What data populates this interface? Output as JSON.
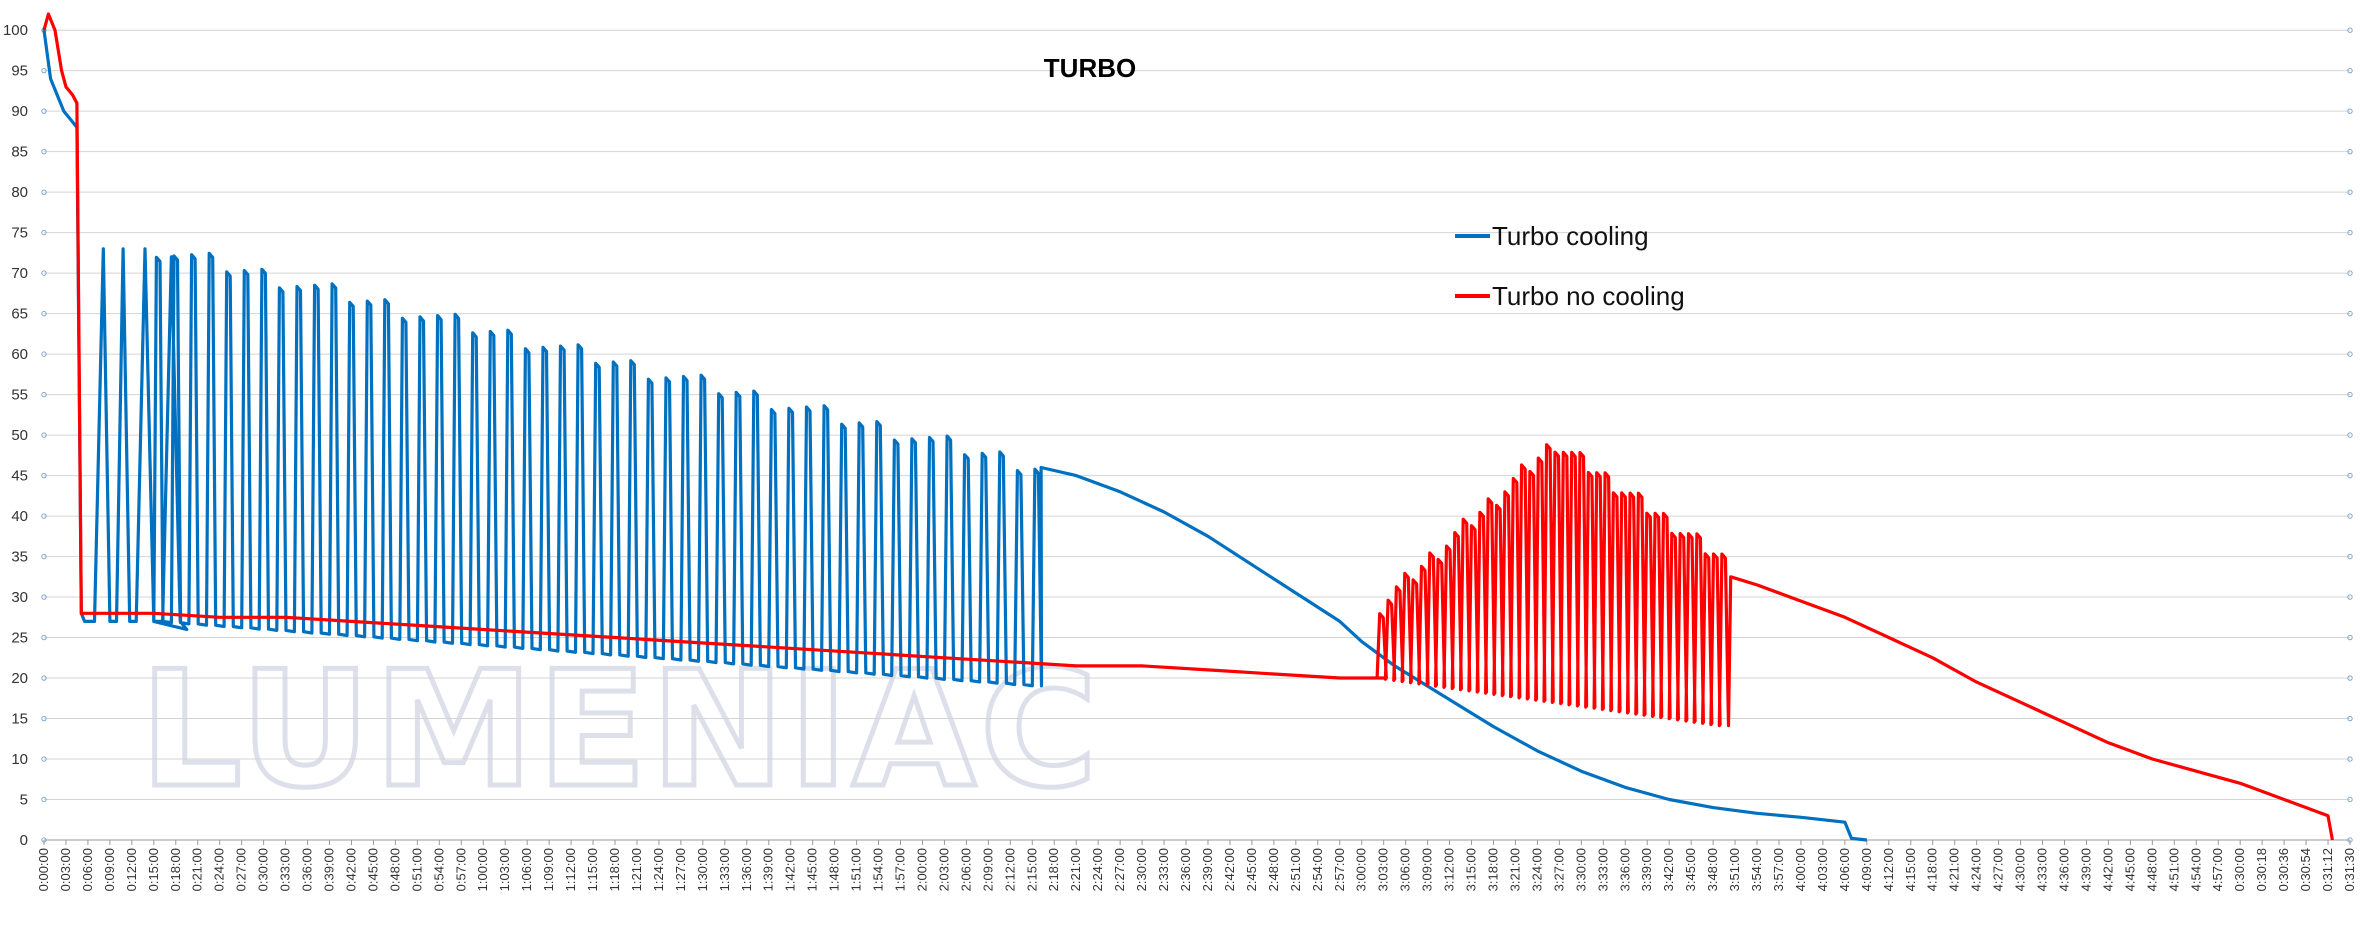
{
  "watermark": "LUMENIAC",
  "chart_data": {
    "type": "line",
    "title": "TURBO",
    "xlabel": "",
    "ylabel": "",
    "ylim": [
      0,
      102
    ],
    "yticks": [
      0,
      5,
      10,
      15,
      20,
      25,
      30,
      35,
      40,
      45,
      50,
      55,
      60,
      65,
      70,
      75,
      80,
      85,
      90,
      95,
      100
    ],
    "grid": true,
    "legend": "upper-center-right",
    "x_tick_labels": [
      "0:00:00",
      "0:03:00",
      "0:06:00",
      "0:09:00",
      "0:12:00",
      "0:15:00",
      "0:18:00",
      "0:21:00",
      "0:24:00",
      "0:27:00",
      "0:30:00",
      "0:33:00",
      "0:36:00",
      "0:39:00",
      "0:42:00",
      "0:45:00",
      "0:48:00",
      "0:51:00",
      "0:54:00",
      "0:57:00",
      "1:00:00",
      "1:03:00",
      "1:06:00",
      "1:09:00",
      "1:12:00",
      "1:15:00",
      "1:18:00",
      "1:21:00",
      "1:24:00",
      "1:27:00",
      "1:30:00",
      "1:33:00",
      "1:36:00",
      "1:39:00",
      "1:42:00",
      "1:45:00",
      "1:48:00",
      "1:51:00",
      "1:54:00",
      "1:57:00",
      "2:00:00",
      "2:03:00",
      "2:06:00",
      "2:09:00",
      "2:12:00",
      "2:15:00",
      "2:18:00",
      "2:21:00",
      "2:24:00",
      "2:27:00",
      "2:30:00",
      "2:33:00",
      "2:36:00",
      "2:39:00",
      "2:42:00",
      "2:45:00",
      "2:48:00",
      "2:51:00",
      "2:54:00",
      "2:57:00",
      "3:00:00",
      "3:03:00",
      "3:06:00",
      "3:09:00",
      "3:12:00",
      "3:15:00",
      "3:18:00",
      "3:21:00",
      "3:24:00",
      "3:27:00",
      "3:30:00",
      "3:33:00",
      "3:36:00",
      "3:39:00",
      "3:42:00",
      "3:45:00",
      "3:48:00",
      "3:51:00",
      "3:54:00",
      "3:57:00",
      "4:00:00",
      "4:03:00",
      "4:06:00",
      "4:09:00",
      "4:12:00",
      "4:15:00",
      "4:18:00",
      "4:21:00",
      "4:24:00",
      "4:27:00",
      "4:30:00",
      "4:33:00",
      "4:36:00",
      "4:39:00",
      "4:42:00",
      "4:45:00",
      "4:48:00",
      "4:51:00",
      "4:54:00",
      "4:57:00",
      "0:30:00",
      "0:30:18",
      "0:30:36",
      "0:30:54",
      "0:31:12",
      "0:31:30"
    ],
    "series": [
      {
        "name": "Turbo cooling",
        "color": "#0070c0",
        "x_index": [
          0,
          0.3,
          0.6,
          0.9,
          1.2,
          1.5,
          1.7,
          1.85,
          2.0,
          2.3,
          2.7,
          3.0,
          3.3,
          3.6,
          3.9,
          4.2,
          4.6,
          5.0,
          5.4,
          5.8,
          6.2,
          6.5
        ],
        "values": [
          100,
          94,
          92,
          90,
          89,
          88,
          28,
          27,
          27,
          27,
          73,
          27,
          27,
          73,
          27,
          27,
          73,
          27,
          27,
          72,
          27,
          26
        ],
        "cycles": {
          "start_index": 5.0,
          "end_index": 45.2,
          "peak_start": 73,
          "peak_end": 46,
          "trough_start": 27,
          "trough_end": 19
        },
        "tail_x_index": [
          45.4,
          47.0,
          49.0,
          51.0,
          53.0,
          55.0,
          57.0,
          59.0,
          60.0,
          61.5,
          63.0,
          64.5,
          66.0,
          68.0,
          70.0,
          72.0,
          74.0,
          76.0,
          78.0,
          80.0,
          82.0,
          82.3,
          83.0
        ],
        "tail_values": [
          46,
          45,
          43,
          40.5,
          37.5,
          34,
          30.5,
          27,
          24.5,
          21.5,
          19,
          16.5,
          14,
          11,
          8.5,
          6.5,
          5,
          4,
          3.3,
          2.8,
          2.2,
          0.2,
          0
        ]
      },
      {
        "name": "Turbo no cooling",
        "color": "#ff0000",
        "x_index": [
          0,
          0.2,
          0.5,
          0.8,
          1.0,
          1.3,
          1.5,
          1.7,
          2.0,
          3.0,
          5.0,
          8.0,
          11.0,
          14.0,
          17.0,
          20.0,
          23.0,
          26.0,
          29.0,
          32.0,
          35.0,
          38.0,
          41.0,
          44.0,
          47.0,
          50.0,
          53.0,
          56.0,
          59.0,
          61.0
        ],
        "values": [
          100,
          102,
          100,
          95,
          93,
          92,
          91,
          28,
          28,
          28,
          28,
          27.5,
          27.5,
          27,
          26.5,
          26,
          25.5,
          25,
          24.5,
          24,
          23.5,
          23,
          22.5,
          22,
          21.5,
          21.5,
          21,
          20.5,
          20,
          20
        ],
        "cycles": {
          "start_index": 60.7,
          "end_index": 76.6,
          "peak_start": 29,
          "peak_mid": 49,
          "peak_end": 34,
          "trough_start": 20,
          "trough_end": 14
        },
        "tail_x_index": [
          76.8,
          78.0,
          80.0,
          82.0,
          84.0,
          86.0,
          88.0,
          90.0,
          92.0,
          94.0,
          96.0,
          98.0,
          100.0,
          101.0,
          102.0,
          103.0,
          104.0,
          104.2
        ],
        "tail_values": [
          32.5,
          31.5,
          29.5,
          27.5,
          25,
          22.5,
          19.5,
          17,
          14.5,
          12,
          10,
          8.5,
          7,
          6,
          5,
          4,
          3,
          0
        ]
      }
    ]
  }
}
